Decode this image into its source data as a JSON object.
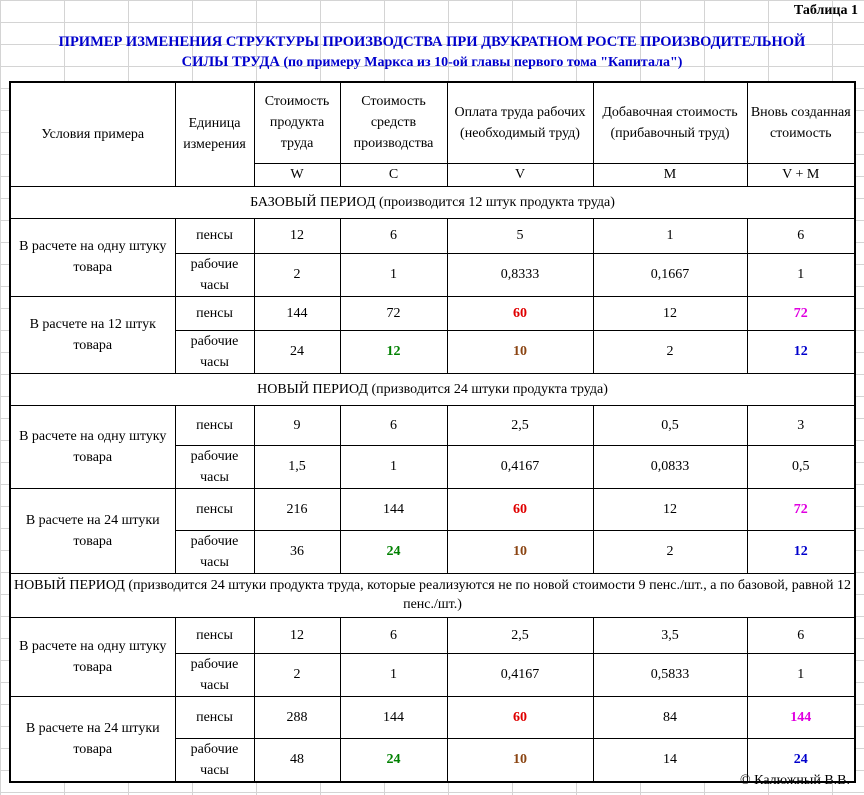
{
  "table_label": "Таблица 1",
  "title_line1": "ПРИМЕР ИЗМЕНЕНИЯ СТРУКТУРЫ ПРОИЗВОДСТВА ПРИ ДВУКРАТНОМ РОСТЕ ПРОИЗВОДИТЕЛЬНОЙ",
  "title_line2": "СИЛЫ ТРУДА",
  "title_line2_sub": " (по примеру Маркса из 10-ой главы первого тома \"Капитала\")",
  "header": {
    "conditions": "Условия примера",
    "unit": "Единица измерения",
    "cols": [
      {
        "label": "Стоимость продукта труда",
        "symbol": "W"
      },
      {
        "label": "Стоимость средств производства",
        "symbol": "C"
      },
      {
        "label": "Оплата труда рабочих (необходимый труд)",
        "symbol": "V"
      },
      {
        "label": "Добавочная стоимость (прибавочный труд)",
        "symbol": "M"
      },
      {
        "label": "Вновь созданная стоимость",
        "symbol": "V + M"
      }
    ]
  },
  "sections": [
    {
      "title": "БАЗОВЫЙ ПЕРИОД (производится 12 штук продукта труда)",
      "groups": [
        {
          "condition": "В расчете на одну штуку товара",
          "rows": [
            {
              "unit": "пенсы",
              "values": [
                "12",
                "6",
                "5",
                "1",
                "6"
              ]
            },
            {
              "unit": "рабочие часы",
              "values": [
                "2",
                "1",
                "0,8333",
                "0,1667",
                "1"
              ]
            }
          ]
        },
        {
          "condition": "В расчете на 12 штук товара",
          "rows": [
            {
              "unit": "пенсы",
              "values": [
                "144",
                "72",
                "60",
                "12",
                "72"
              ]
            },
            {
              "unit": "рабочие часы",
              "values": [
                "24",
                "12",
                "10",
                "2",
                "12"
              ]
            }
          ]
        }
      ]
    },
    {
      "title": "НОВЫЙ ПЕРИОД (призводится 24 штуки продукта труда)",
      "groups": [
        {
          "condition": "В расчете на одну штуку товара",
          "rows": [
            {
              "unit": "пенсы",
              "values": [
                "9",
                "6",
                "2,5",
                "0,5",
                "3"
              ]
            },
            {
              "unit": "рабочие часы",
              "values": [
                "1,5",
                "1",
                "0,4167",
                "0,0833",
                "0,5"
              ]
            }
          ]
        },
        {
          "condition": "В расчете на 24 штуки товара",
          "rows": [
            {
              "unit": "пенсы",
              "values": [
                "216",
                "144",
                "60",
                "12",
                "72"
              ]
            },
            {
              "unit": "рабочие часы",
              "values": [
                "36",
                "24",
                "10",
                "2",
                "12"
              ]
            }
          ]
        }
      ]
    },
    {
      "title": "НОВЫЙ ПЕРИОД (призводится 24 штуки продукта труда, которые реализуются не по новой стоимости 9 пенс./шт., а по базовой, равной 12 пенс./шт.)",
      "groups": [
        {
          "condition": "В расчете на одну штуку товара",
          "rows": [
            {
              "unit": "пенсы",
              "values": [
                "12",
                "6",
                "2,5",
                "3,5",
                "6"
              ]
            },
            {
              "unit": "рабочие часы",
              "values": [
                "2",
                "1",
                "0,4167",
                "0,5833",
                "1"
              ]
            }
          ]
        },
        {
          "condition": "В расчете на 24 штуки товара",
          "rows": [
            {
              "unit": "пенсы",
              "values": [
                "288",
                "144",
                "60",
                "84",
                "144"
              ]
            },
            {
              "unit": "рабочие часы",
              "values": [
                "48",
                "24",
                "10",
                "14",
                "24"
              ]
            }
          ]
        }
      ]
    }
  ],
  "highlight_colors": {
    "red": "#e00000",
    "green": "#008000",
    "brown": "#8b4513",
    "magenta": "#e000e0",
    "blue": "#0000cc"
  },
  "copyright": "© Калюжный В.В."
}
